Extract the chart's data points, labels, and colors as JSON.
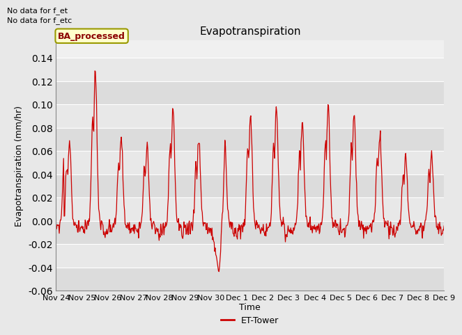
{
  "title": "Evapotranspiration",
  "ylabel": "Evapotranspiration (mm/hr)",
  "xlabel": "Time",
  "ylim": [
    -0.06,
    0.155
  ],
  "yticks": [
    -0.06,
    -0.04,
    -0.02,
    0.0,
    0.02,
    0.04,
    0.06,
    0.08,
    0.1,
    0.12,
    0.14
  ],
  "bg_color": "#e8e8e8",
  "plot_bg_color": "#f0f0f0",
  "line_color": "#cc0000",
  "legend_label": "ET-Tower",
  "box_label": "BA_processed",
  "annotation1": "No data for f_et",
  "annotation2": "No data for f_etc",
  "x_tick_labels": [
    "Nov 24",
    "Nov 25",
    "Nov 26",
    "Nov 27",
    "Nov 28",
    "Nov 29",
    "Nov 30",
    "Dec 1",
    "Dec 2",
    "Dec 3",
    "Dec 4",
    "Dec 5",
    "Dec 6",
    "Dec 7",
    "Dec 8",
    "Dec 9"
  ],
  "band_colors": [
    "#dcdcdc",
    "#e8e8e8"
  ],
  "title_fontsize": 11,
  "label_fontsize": 9,
  "tick_fontsize": 8
}
